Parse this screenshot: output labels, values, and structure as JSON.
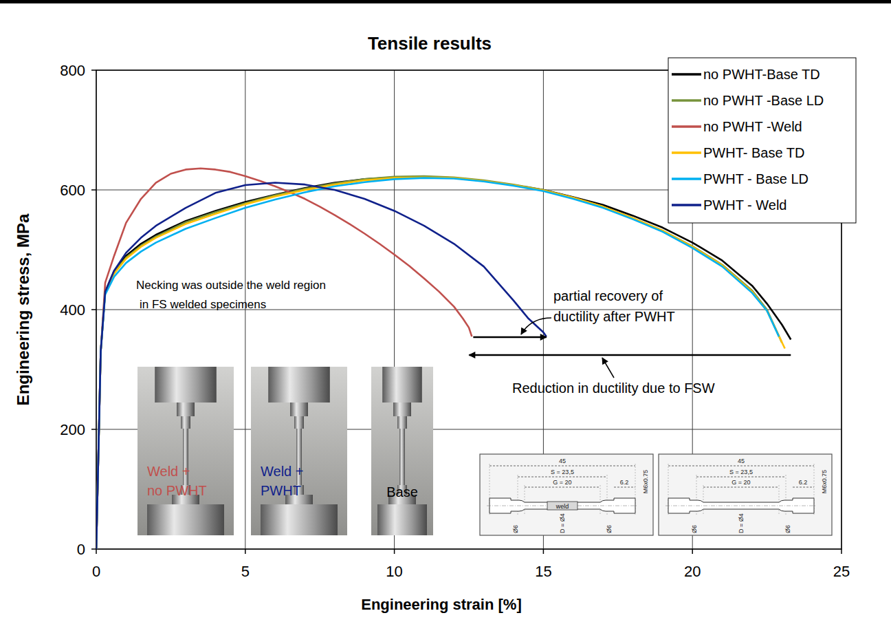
{
  "chart_data": {
    "type": "line",
    "title": "Tensile results",
    "x_label": "Engineering strain [%]",
    "y_label": "Engineering stress, MPa",
    "xlim": [
      0,
      25
    ],
    "ylim": [
      0,
      800
    ],
    "xticks": [
      0,
      5,
      10,
      15,
      20,
      25
    ],
    "yticks": [
      0,
      200,
      400,
      600,
      800
    ],
    "grid": true,
    "legend": "top-right",
    "series": [
      {
        "name": "no PWHT-Base TD",
        "color": "#000000",
        "x": [
          0,
          0.15,
          0.3,
          0.6,
          1,
          1.5,
          2,
          3,
          4,
          5,
          6,
          7,
          8,
          9,
          10,
          11,
          12,
          13,
          14,
          15,
          16,
          17,
          18,
          19,
          20,
          21,
          22,
          22.5,
          23,
          23.3
        ],
        "values": [
          0,
          330,
          430,
          465,
          490,
          510,
          525,
          548,
          565,
          580,
          592,
          603,
          612,
          618,
          621,
          622,
          620,
          615,
          608,
          600,
          588,
          575,
          557,
          537,
          512,
          482,
          440,
          410,
          375,
          350
        ]
      },
      {
        "name": "no PWHT -Base LD",
        "color": "#77933c",
        "x": [
          0,
          0.15,
          0.3,
          0.6,
          1,
          1.5,
          2,
          3,
          4,
          5,
          6,
          7,
          8,
          9,
          10,
          11,
          12,
          13,
          14,
          15,
          16,
          17,
          18,
          19,
          20,
          21,
          22,
          22.5,
          23
        ],
        "values": [
          0,
          330,
          430,
          462,
          487,
          507,
          522,
          546,
          563,
          578,
          591,
          602,
          611,
          618,
          622,
          623,
          621,
          616,
          609,
          600,
          587,
          572,
          553,
          532,
          506,
          475,
          432,
          400,
          345
        ]
      },
      {
        "name": "no PWHT -Weld",
        "color": "#c0504d",
        "x": [
          0,
          0.15,
          0.3,
          0.6,
          1,
          1.5,
          2,
          2.5,
          3,
          3.5,
          4,
          4.5,
          5,
          5.5,
          6,
          6.5,
          7,
          7.5,
          8,
          8.5,
          9,
          9.5,
          10,
          10.5,
          11,
          11.5,
          12,
          12.3,
          12.5,
          12.6
        ],
        "values": [
          0,
          330,
          445,
          490,
          545,
          585,
          612,
          627,
          634,
          636,
          634,
          630,
          623,
          615,
          606,
          596,
          585,
          572,
          558,
          543,
          527,
          510,
          492,
          473,
          452,
          430,
          405,
          385,
          370,
          355
        ]
      },
      {
        "name": "PWHT- Base TD",
        "color": "#ffc000",
        "x": [
          0,
          0.15,
          0.3,
          0.6,
          1,
          1.5,
          2,
          3,
          4,
          5,
          6,
          7,
          8,
          9,
          10,
          11,
          12,
          13,
          14,
          15,
          16,
          17,
          18,
          19,
          20,
          21,
          22,
          22.5,
          23.1
        ],
        "values": [
          0,
          330,
          430,
          460,
          485,
          505,
          520,
          543,
          560,
          576,
          589,
          600,
          609,
          616,
          620,
          621,
          620,
          615,
          608,
          599,
          587,
          572,
          553,
          532,
          505,
          474,
          430,
          398,
          335
        ]
      },
      {
        "name": "PWHT - Base LD",
        "color": "#00b0f0",
        "x": [
          0,
          0.15,
          0.3,
          0.6,
          1,
          1.5,
          2,
          3,
          4,
          5,
          6,
          7,
          8,
          9,
          10,
          11,
          12,
          13,
          14,
          15,
          16,
          17,
          18,
          19,
          20,
          21,
          22,
          22.5,
          22.9
        ],
        "values": [
          0,
          330,
          425,
          455,
          478,
          497,
          512,
          535,
          553,
          570,
          584,
          596,
          606,
          613,
          618,
          620,
          619,
          614,
          607,
          598,
          585,
          570,
          551,
          530,
          503,
          472,
          428,
          398,
          355
        ]
      },
      {
        "name": "PWHT - Weld",
        "color": "#10218b",
        "x": [
          0,
          0.15,
          0.3,
          0.6,
          1,
          1.5,
          2,
          3,
          4,
          5,
          6,
          7,
          8,
          9,
          10,
          11,
          12,
          13,
          14,
          14.5,
          15,
          15.1
        ],
        "values": [
          0,
          330,
          430,
          465,
          495,
          520,
          540,
          570,
          595,
          608,
          612,
          609,
          600,
          585,
          565,
          540,
          510,
          472,
          415,
          385,
          362,
          355
        ]
      }
    ],
    "annotations": [
      [
        "Necking was outside the weld region",
        "in FS welded specimens"
      ],
      [
        "partial recovery of",
        "ductility after PWHT"
      ],
      [
        "Reduction in ductility due to FSW"
      ]
    ],
    "photos": [
      [
        "Weld +",
        "no PWHT"
      ],
      [
        "Weld +",
        "PWHT"
      ],
      [
        "Base"
      ]
    ],
    "drawings": [
      {
        "labels": [
          "45",
          "S = 23,5",
          "G = 20",
          "6.2",
          "M6x0.75",
          "Ø6",
          "D = Ø4",
          "Ø6"
        ],
        "weld": "weld"
      },
      {
        "labels": [
          "45",
          "S = 23,5",
          "G = 20",
          "6.2",
          "M6x0.75",
          "Ø6",
          "D = Ø4",
          "Ø6"
        ]
      }
    ]
  }
}
